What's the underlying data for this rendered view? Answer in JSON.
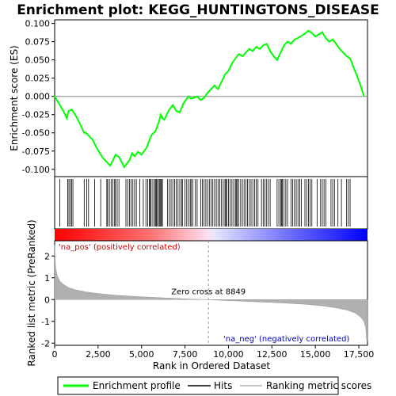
{
  "chart_data": {
    "type": "line",
    "title": "Enrichment plot: KEGG_HUNTINGTONS_DISEASE",
    "n_genes": 18000,
    "top_panel": {
      "ylabel": "Enrichment score (ES)",
      "ylim": [
        -0.11,
        0.105
      ],
      "yticks": [
        -0.1,
        -0.075,
        -0.05,
        -0.025,
        0.0,
        0.025,
        0.05,
        0.075,
        0.1
      ],
      "ytick_labels": [
        "-0.100",
        "-0.075",
        "-0.050",
        "-0.025",
        "0.000",
        "0.025",
        "0.050",
        "0.075",
        "0.100"
      ],
      "series": [
        {
          "name": "Enrichment profile",
          "color": "#00ff00",
          "x": [
            0,
            250,
            500,
            700,
            800,
            1000,
            1100,
            1300,
            1500,
            1700,
            1800,
            2000,
            2200,
            2400,
            2600,
            2800,
            3000,
            3200,
            3350,
            3500,
            3700,
            3850,
            4000,
            4150,
            4300,
            4450,
            4600,
            4800,
            5000,
            5150,
            5300,
            5450,
            5600,
            5800,
            6000,
            6100,
            6200,
            6300,
            6450,
            6600,
            6800,
            7000,
            7200,
            7400,
            7550,
            7700,
            7850,
            8000,
            8200,
            8400,
            8600,
            8800,
            9000,
            9200,
            9400,
            9600,
            9800,
            10000,
            10200,
            10400,
            10600,
            10800,
            11000,
            11200,
            11400,
            11600,
            11800,
            12000,
            12200,
            12400,
            12600,
            12800,
            13000,
            13200,
            13400,
            13600,
            13800,
            14000,
            14200,
            14400,
            14600,
            14800,
            15000,
            15200,
            15400,
            15600,
            15800,
            16000,
            16200,
            16400,
            16600,
            16800,
            17000,
            17200,
            17400,
            17600,
            17800
          ],
          "y": [
            0.0,
            -0.01,
            -0.02,
            -0.03,
            -0.02,
            -0.018,
            -0.022,
            -0.03,
            -0.04,
            -0.05,
            -0.05,
            -0.055,
            -0.06,
            -0.07,
            -0.078,
            -0.085,
            -0.09,
            -0.095,
            -0.088,
            -0.08,
            -0.083,
            -0.09,
            -0.097,
            -0.092,
            -0.088,
            -0.078,
            -0.082,
            -0.076,
            -0.08,
            -0.075,
            -0.07,
            -0.06,
            -0.052,
            -0.048,
            -0.035,
            -0.025,
            -0.03,
            -0.032,
            -0.025,
            -0.018,
            -0.012,
            -0.02,
            -0.022,
            -0.01,
            -0.005,
            0.0,
            -0.003,
            -0.002,
            0.0,
            -0.005,
            -0.002,
            0.005,
            0.01,
            0.015,
            0.01,
            0.02,
            0.03,
            0.035,
            0.045,
            0.052,
            0.058,
            0.055,
            0.06,
            0.065,
            0.062,
            0.068,
            0.065,
            0.07,
            0.072,
            0.062,
            0.055,
            0.05,
            0.06,
            0.07,
            0.075,
            0.072,
            0.078,
            0.08,
            0.083,
            0.086,
            0.09,
            0.087,
            0.082,
            0.085,
            0.088,
            0.08,
            0.075,
            0.078,
            0.072,
            0.065,
            0.06,
            0.055,
            0.052,
            0.04,
            0.028,
            0.015,
            0.0
          ]
        }
      ],
      "hits": [
        300,
        750,
        820,
        900,
        980,
        1050,
        1700,
        1850,
        1950,
        2300,
        2650,
        3000,
        3050,
        3150,
        3250,
        3350,
        3450,
        3500,
        3600,
        3700,
        4100,
        4200,
        4300,
        4400,
        4500,
        4600,
        4700,
        4900,
        5100,
        5250,
        5350,
        5450,
        5500,
        5550,
        5650,
        5750,
        5800,
        5850,
        5900,
        6000,
        6050,
        6100,
        6150,
        6200,
        6500,
        6600,
        6700,
        6800,
        6900,
        7000,
        7100,
        7200,
        7300,
        7350,
        7500,
        7600,
        7700,
        7800,
        7850,
        7950,
        8100,
        8200,
        8400,
        8500,
        8600,
        8700,
        8800,
        8900,
        9000,
        9100,
        9200,
        9300,
        9400,
        9500,
        9600,
        9700,
        9800,
        9850,
        9900,
        10000,
        10100,
        10200,
        10300,
        10400,
        10450,
        10500,
        10600,
        10700,
        10800,
        10900,
        11000,
        11100,
        11200,
        11300,
        11400,
        11500,
        11600,
        11700,
        11900,
        12000,
        12100,
        12200,
        12300,
        12400,
        12800,
        12900,
        13000,
        13050,
        13100,
        13200,
        13300,
        13400,
        13600,
        13700,
        13800,
        13900,
        14000,
        14100,
        14200,
        14400,
        14500,
        14600,
        14700,
        14800,
        15100,
        15300,
        15400,
        15500,
        15600,
        15900,
        16000,
        16100,
        16300,
        16500,
        16800,
        16900,
        17000
      ]
    },
    "middle_panel": {
      "label_pos": "'na_pos' (positively correlated)",
      "label_neg": "'na_neg' (negatively correlated)",
      "pos_color": "#ff0000",
      "neg_color": "#0000ff"
    },
    "bottom_panel": {
      "ylabel": "Ranked list metric (PreRanked)",
      "xlabel": "Rank in Ordered Dataset",
      "ylim": [
        -2.1,
        2.7
      ],
      "yticks": [
        -2,
        -1,
        0,
        1,
        2
      ],
      "ytick_labels": [
        "-2",
        "-1",
        "0",
        "1",
        "2"
      ],
      "xticks": [
        0,
        2500,
        5000,
        7500,
        10000,
        12500,
        15000,
        17500
      ],
      "xtick_labels": [
        "0",
        "2,500",
        "5,000",
        "7,500",
        "10,000",
        "12,500",
        "15,000",
        "17,500"
      ],
      "zero_cross": 8849,
      "zero_cross_label": "Zero cross at 8849",
      "metric_x": [
        0,
        50,
        150,
        300,
        500,
        800,
        1200,
        1800,
        2500,
        3500,
        5000,
        6500,
        8000,
        8849,
        10000,
        11500,
        13000,
        14500,
        15500,
        16200,
        16800,
        17300,
        17600,
        17800,
        17900,
        17950,
        18000
      ],
      "metric_y": [
        2.5,
        1.5,
        1.1,
        0.85,
        0.7,
        0.55,
        0.45,
        0.35,
        0.28,
        0.2,
        0.13,
        0.07,
        0.02,
        0.0,
        -0.05,
        -0.1,
        -0.15,
        -0.22,
        -0.3,
        -0.38,
        -0.48,
        -0.62,
        -0.8,
        -1.0,
        -1.3,
        -1.9,
        -1.9
      ],
      "fill_color": "#b0b0b0"
    },
    "legend": {
      "items": [
        {
          "name": "Enrichment profile",
          "color": "#00ff00"
        },
        {
          "name": "Hits",
          "color": "#000000"
        },
        {
          "name": "Ranking metric scores",
          "color": "#b0b0b0"
        }
      ]
    }
  }
}
